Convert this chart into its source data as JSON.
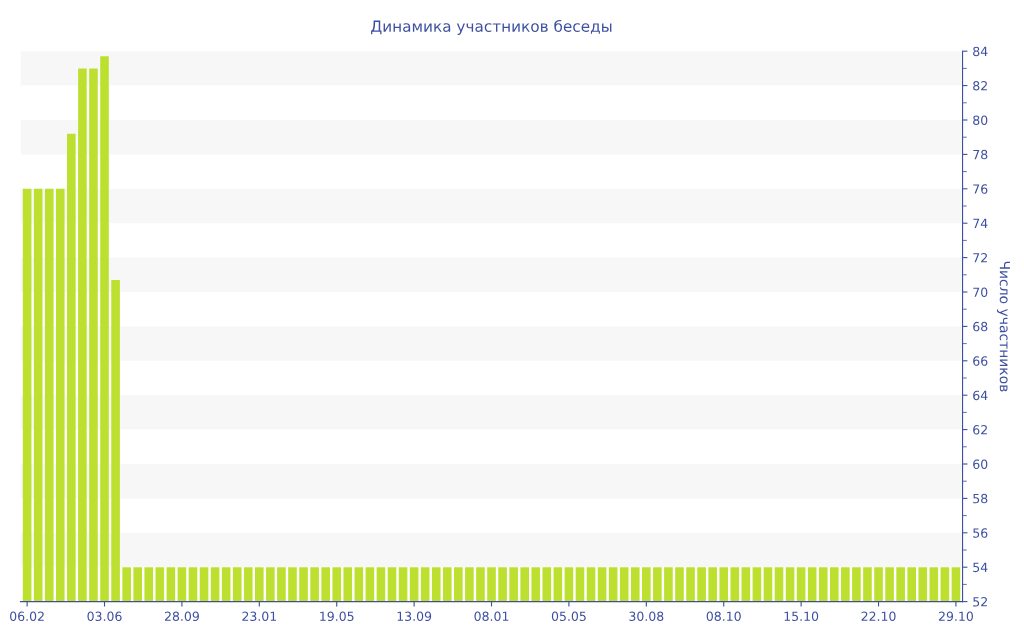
{
  "chart_data": {
    "type": "bar",
    "title": "Динамика участников беседы",
    "ylabel": "Число участников",
    "categories": [
      "06.02",
      null,
      null,
      null,
      null,
      null,
      null,
      "03.06",
      null,
      null,
      null,
      null,
      null,
      null,
      "28.09",
      null,
      null,
      null,
      null,
      null,
      null,
      "23.01",
      null,
      null,
      null,
      null,
      null,
      null,
      "19.05",
      null,
      null,
      null,
      null,
      null,
      null,
      "13.09",
      null,
      null,
      null,
      null,
      null,
      null,
      "08.01",
      null,
      null,
      null,
      null,
      null,
      null,
      "05.05",
      null,
      null,
      null,
      null,
      null,
      null,
      "30.08",
      null,
      null,
      null,
      null,
      null,
      null,
      "08.10",
      null,
      null,
      null,
      null,
      null,
      null,
      "15.10",
      null,
      null,
      null,
      null,
      null,
      null,
      "22.10",
      null,
      null,
      null,
      null,
      null,
      null,
      "29.10"
    ],
    "values": [
      76,
      76,
      76,
      76,
      79.2,
      83,
      83,
      83.7,
      70.7,
      54,
      54,
      54,
      54,
      54,
      54,
      54,
      54,
      54,
      54,
      54,
      54,
      54,
      54,
      54,
      54,
      54,
      54,
      54,
      54,
      54,
      54,
      54,
      54,
      54,
      54,
      54,
      54,
      54,
      54,
      54,
      54,
      54,
      54,
      54,
      54,
      54,
      54,
      54,
      54,
      54,
      54,
      54,
      54,
      54,
      54,
      54,
      54,
      54,
      54,
      54,
      54,
      54,
      54,
      54,
      54,
      54,
      54,
      54,
      54,
      54,
      54,
      54,
      54,
      54,
      54,
      54,
      54,
      54,
      54,
      54,
      54,
      54,
      54,
      54,
      54
    ],
    "color": "#bde030",
    "ylim": [
      52,
      84
    ],
    "yticks": [
      52,
      54,
      56,
      58,
      60,
      62,
      64,
      66,
      68,
      70,
      72,
      74,
      76,
      78,
      80,
      82,
      84
    ]
  }
}
